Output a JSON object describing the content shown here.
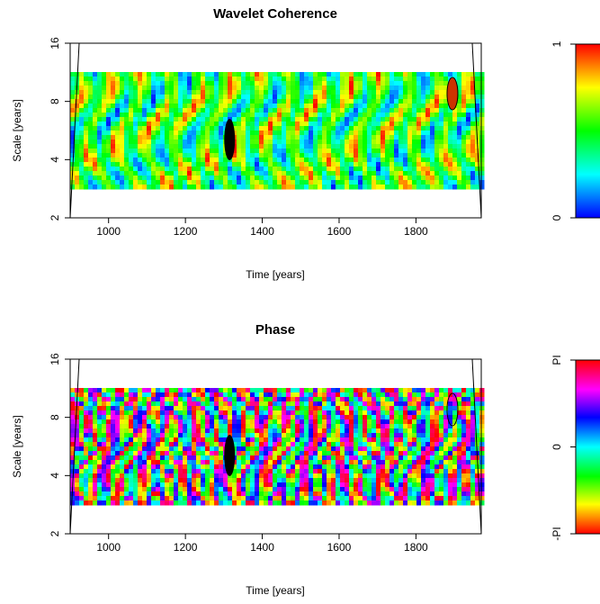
{
  "chart_data": [
    {
      "type": "heatmap",
      "title": "Wavelet Coherence",
      "x_label": "Time [years]",
      "y_label": "Scale [years]",
      "xlim": [
        900,
        1970
      ],
      "xticks": [
        1000,
        1200,
        1400,
        1600,
        1800
      ],
      "ylim": [
        2,
        16
      ],
      "yticks": [
        2,
        4,
        8,
        16
      ],
      "ylog": true,
      "palette": "jet",
      "colorbar": {
        "lim": [
          0,
          1
        ],
        "ticks": [
          0,
          1
        ]
      }
    },
    {
      "type": "heatmap",
      "title": "Phase",
      "x_label": "Time [years]",
      "y_label": "Scale [years]",
      "xlim": [
        900,
        1970
      ],
      "xticks": [
        1000,
        1200,
        1400,
        1600,
        1800
      ],
      "ylim": [
        2,
        16
      ],
      "yticks": [
        2,
        4,
        8,
        16
      ],
      "ylog": true,
      "palette": "hue",
      "colorbar": {
        "lim": [
          -3.14159,
          3.14159
        ],
        "ticks": [
          {
            "value": -3.14159,
            "label": "-PI"
          },
          0,
          {
            "value": 3.14159,
            "label": "PI"
          }
        ]
      }
    }
  ]
}
